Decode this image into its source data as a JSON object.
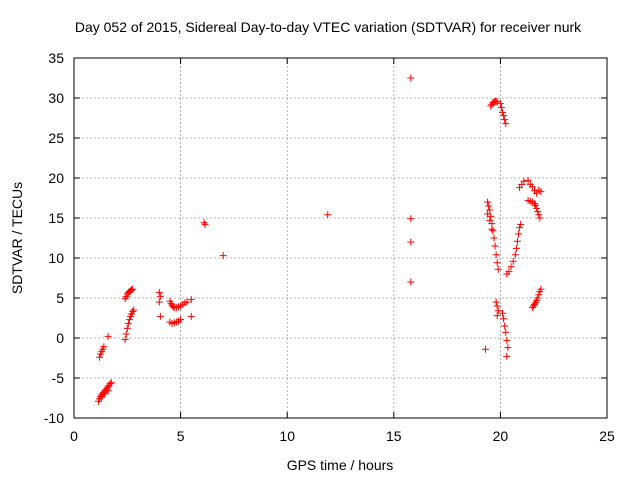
{
  "chart_data": {
    "type": "scatter",
    "title": "Day 052 of 2015, Sidereal Day-to-day VTEC variation (SDTVAR) for receiver nurk",
    "xlabel": "GPS time / hours",
    "ylabel": "SDTVAR / TECUs",
    "xlim": [
      0,
      25
    ],
    "ylim": [
      -10,
      35
    ],
    "xticks": [
      0,
      5,
      10,
      15,
      20,
      25
    ],
    "yticks": [
      -10,
      -5,
      0,
      5,
      10,
      15,
      20,
      25,
      30,
      35
    ],
    "grid": true,
    "marker": "+",
    "color": "#ff0000",
    "series": [
      {
        "name": "SDTVAR",
        "points": [
          [
            1.2,
            -2.4
          ],
          [
            1.25,
            -2.0
          ],
          [
            1.3,
            -1.7
          ],
          [
            1.35,
            -1.4
          ],
          [
            1.4,
            -1.1
          ],
          [
            1.15,
            -7.9
          ],
          [
            1.2,
            -7.6
          ],
          [
            1.25,
            -7.3
          ],
          [
            1.3,
            -7.1
          ],
          [
            1.35,
            -6.9
          ],
          [
            1.4,
            -6.8
          ],
          [
            1.45,
            -6.6
          ],
          [
            1.5,
            -6.5
          ],
          [
            1.55,
            -6.3
          ],
          [
            1.6,
            -6.1
          ],
          [
            1.65,
            -5.9
          ],
          [
            1.7,
            -5.7
          ],
          [
            1.75,
            -5.6
          ],
          [
            1.3,
            -7.4
          ],
          [
            1.45,
            -7.0
          ],
          [
            1.6,
            -6.6
          ],
          [
            1.6,
            0.2
          ],
          [
            2.4,
            -0.2
          ],
          [
            2.45,
            0.5
          ],
          [
            2.5,
            1.2
          ],
          [
            2.55,
            1.8
          ],
          [
            2.6,
            2.3
          ],
          [
            2.65,
            2.7
          ],
          [
            2.7,
            3.0
          ],
          [
            2.75,
            3.3
          ],
          [
            2.8,
            3.5
          ],
          [
            2.4,
            4.9
          ],
          [
            2.45,
            5.2
          ],
          [
            2.5,
            5.5
          ],
          [
            2.55,
            5.7
          ],
          [
            2.6,
            5.8
          ],
          [
            2.65,
            5.9
          ],
          [
            2.7,
            6.0
          ],
          [
            2.75,
            6.1
          ],
          [
            4.0,
            5.7
          ],
          [
            4.05,
            5.2
          ],
          [
            4.0,
            4.5
          ],
          [
            4.05,
            2.7
          ],
          [
            4.5,
            4.6
          ],
          [
            4.55,
            4.3
          ],
          [
            4.6,
            4.1
          ],
          [
            4.65,
            3.9
          ],
          [
            4.7,
            3.8
          ],
          [
            4.8,
            3.8
          ],
          [
            4.9,
            3.9
          ],
          [
            5.0,
            4.0
          ],
          [
            5.1,
            4.2
          ],
          [
            5.2,
            4.4
          ],
          [
            5.3,
            4.5
          ],
          [
            4.5,
            2.0
          ],
          [
            4.6,
            1.8
          ],
          [
            4.7,
            1.9
          ],
          [
            4.8,
            2.0
          ],
          [
            4.9,
            2.1
          ],
          [
            5.0,
            2.3
          ],
          [
            5.5,
            4.8
          ],
          [
            5.5,
            2.7
          ],
          [
            6.1,
            14.4
          ],
          [
            6.15,
            14.2
          ],
          [
            7.0,
            10.3
          ],
          [
            11.9,
            15.4
          ],
          [
            15.8,
            32.5
          ],
          [
            15.8,
            14.9
          ],
          [
            15.8,
            12.0
          ],
          [
            15.8,
            7.0
          ],
          [
            19.3,
            -1.4
          ],
          [
            19.4,
            17.0
          ],
          [
            19.45,
            16.5
          ],
          [
            19.5,
            16.0
          ],
          [
            19.55,
            15.2
          ],
          [
            19.6,
            14.3
          ],
          [
            19.65,
            13.4
          ],
          [
            19.7,
            12.5
          ],
          [
            19.75,
            11.5
          ],
          [
            19.8,
            10.4
          ],
          [
            19.85,
            9.4
          ],
          [
            19.9,
            8.6
          ],
          [
            19.4,
            15.5
          ],
          [
            19.5,
            14.7
          ],
          [
            19.6,
            13.6
          ],
          [
            19.8,
            4.5
          ],
          [
            19.85,
            4.0
          ],
          [
            19.9,
            3.4
          ],
          [
            19.85,
            2.8
          ],
          [
            19.55,
            29.0
          ],
          [
            19.6,
            29.2
          ],
          [
            19.65,
            29.4
          ],
          [
            19.7,
            29.5
          ],
          [
            19.75,
            29.6
          ],
          [
            19.8,
            29.6
          ],
          [
            19.85,
            29.5
          ],
          [
            20.0,
            29.3
          ],
          [
            20.05,
            28.8
          ],
          [
            20.1,
            28.2
          ],
          [
            20.15,
            27.8
          ],
          [
            20.2,
            27.3
          ],
          [
            20.25,
            26.8
          ],
          [
            20.1,
            3.1
          ],
          [
            20.15,
            2.4
          ],
          [
            20.2,
            1.5
          ],
          [
            20.25,
            0.7
          ],
          [
            20.3,
            -0.3
          ],
          [
            20.35,
            -1.2
          ],
          [
            20.3,
            -2.3
          ],
          [
            20.3,
            8.0
          ],
          [
            20.4,
            8.3
          ],
          [
            20.5,
            8.9
          ],
          [
            20.6,
            9.6
          ],
          [
            20.7,
            10.4
          ],
          [
            20.75,
            11.2
          ],
          [
            20.8,
            12.1
          ],
          [
            20.85,
            13.0
          ],
          [
            20.9,
            13.8
          ],
          [
            20.95,
            14.2
          ],
          [
            20.9,
            18.8
          ],
          [
            21.0,
            19.2
          ],
          [
            21.1,
            19.6
          ],
          [
            21.3,
            19.7
          ],
          [
            21.4,
            19.2
          ],
          [
            21.5,
            18.9
          ],
          [
            21.6,
            18.4
          ],
          [
            21.7,
            18.1
          ],
          [
            21.8,
            18.5
          ],
          [
            21.9,
            18.3
          ],
          [
            21.3,
            17.2
          ],
          [
            21.4,
            17.1
          ],
          [
            21.5,
            17.0
          ],
          [
            21.6,
            16.8
          ],
          [
            21.65,
            16.6
          ],
          [
            21.7,
            16.2
          ],
          [
            21.75,
            15.8
          ],
          [
            21.8,
            15.4
          ],
          [
            21.85,
            15.0
          ],
          [
            21.5,
            3.8
          ],
          [
            21.55,
            4.0
          ],
          [
            21.6,
            4.2
          ],
          [
            21.65,
            4.4
          ],
          [
            21.7,
            4.7
          ],
          [
            21.75,
            5.0
          ],
          [
            21.8,
            5.4
          ],
          [
            21.85,
            5.8
          ],
          [
            21.9,
            6.1
          ]
        ]
      }
    ]
  }
}
